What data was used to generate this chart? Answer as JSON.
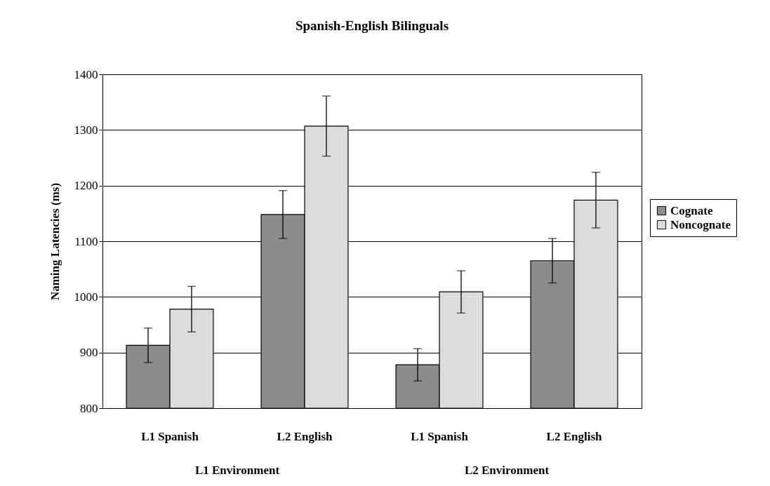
{
  "chart_data": {
    "type": "bar",
    "title": "Spanish-English Bilinguals",
    "ylabel": "Naming Latencies (ms)",
    "categories": [
      "L1 Spanish",
      "L2 English",
      "L1 Spanish",
      "L2 English"
    ],
    "annotations": [
      "L1 Environment",
      "L2 Environment"
    ],
    "series": [
      {
        "name": "Cognate",
        "color": "#8c8c8c",
        "values": [
          913,
          1148,
          878,
          1065
        ],
        "errors": [
          31,
          43,
          29,
          40
        ]
      },
      {
        "name": "Noncognate",
        "color": "#dcdcdc",
        "values": [
          978,
          1307,
          1009,
          1174
        ],
        "errors": [
          41,
          54,
          38,
          50
        ]
      }
    ],
    "ylim": [
      800,
      1400
    ],
    "yticks": [
      800,
      900,
      1000,
      1100,
      1200,
      1300,
      1400
    ],
    "grid": "y",
    "legend": "right"
  }
}
